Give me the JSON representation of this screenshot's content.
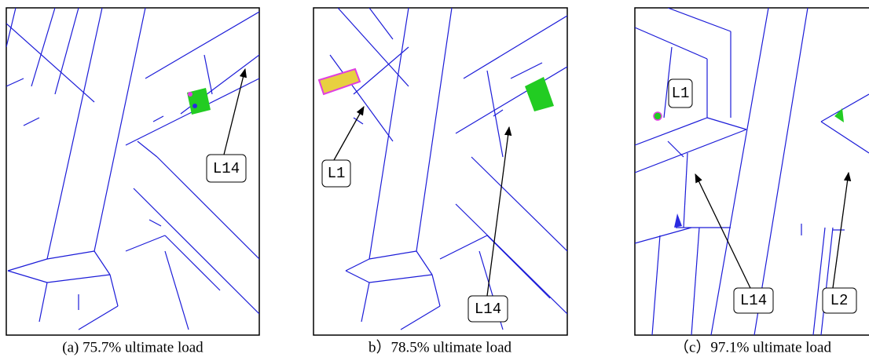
{
  "panels": [
    {
      "caption": "(a) 75.7% ultimate load",
      "labels": [
        "L14"
      ]
    },
    {
      "caption": "b）78.5% ultimate load",
      "labels": [
        "L1",
        "L14"
      ]
    },
    {
      "caption": "（c）97.1% ultimate load",
      "labels": [
        "L1",
        "L14",
        "L2"
      ]
    }
  ]
}
